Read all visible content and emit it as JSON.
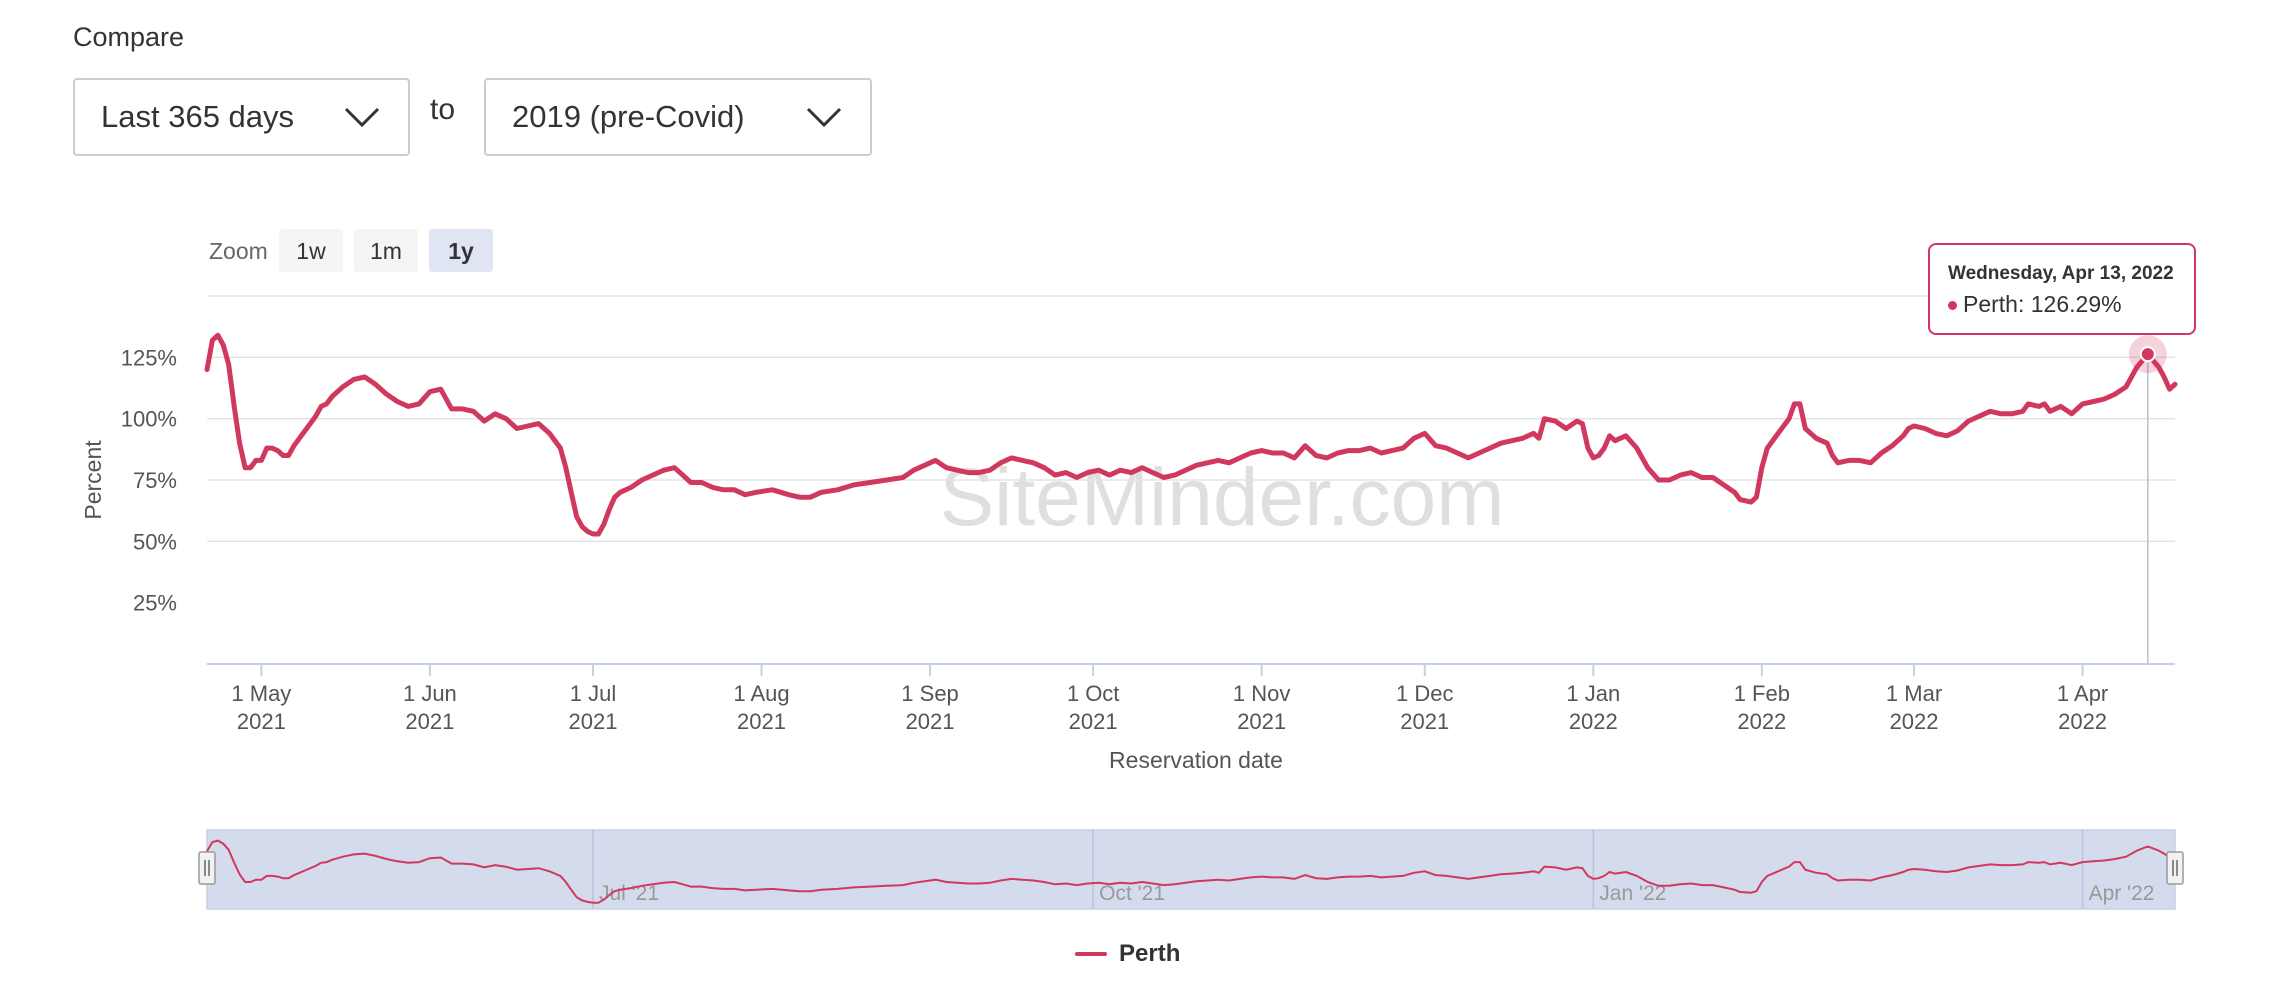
{
  "compare": {
    "label": "Compare",
    "period": "Last 365 days",
    "to": "to",
    "baseline": "2019 (pre-Covid)"
  },
  "zoom": {
    "label": "Zoom",
    "buttons": [
      "1w",
      "1m",
      "1y"
    ],
    "active": "1y"
  },
  "tooltip": {
    "date": "Wednesday, Apr 13, 2022",
    "series": "Perth",
    "value": "126.29%"
  },
  "watermark": "SiteMinder.com",
  "colors": {
    "series": "#d1385e",
    "navigator_fill": "#d4dbed",
    "zoom_active": "#dfe5f3",
    "zoom_inactive": "#f5f5f5"
  },
  "chart_data": {
    "type": "line",
    "title": "",
    "xlabel": "Reservation date",
    "ylabel": "Percent",
    "ylim": [
      0,
      150
    ],
    "y_ticks": [
      "25%",
      "50%",
      "75%",
      "100%",
      "125%"
    ],
    "grid": true,
    "legend_position": "bottom-center",
    "x_ticks": [
      {
        "line1": "1 May",
        "line2": "2021",
        "date": "2021-05-01"
      },
      {
        "line1": "1 Jun",
        "line2": "2021",
        "date": "2021-06-01"
      },
      {
        "line1": "1 Jul",
        "line2": "2021",
        "date": "2021-07-01"
      },
      {
        "line1": "1 Aug",
        "line2": "2021",
        "date": "2021-08-01"
      },
      {
        "line1": "1 Sep",
        "line2": "2021",
        "date": "2021-09-01"
      },
      {
        "line1": "1 Oct",
        "line2": "2021",
        "date": "2021-10-01"
      },
      {
        "line1": "1 Nov",
        "line2": "2021",
        "date": "2021-11-01"
      },
      {
        "line1": "1 Dec",
        "line2": "2021",
        "date": "2021-12-01"
      },
      {
        "line1": "1 Jan",
        "line2": "2022",
        "date": "2022-01-01"
      },
      {
        "line1": "1 Feb",
        "line2": "2022",
        "date": "2022-02-01"
      },
      {
        "line1": "1 Mar",
        "line2": "2022",
        "date": "2022-03-01"
      },
      {
        "line1": "1 Apr",
        "line2": "2022",
        "date": "2022-04-01"
      }
    ],
    "navigator_ticks": [
      {
        "label": "Jul '21",
        "date": "2021-07-01"
      },
      {
        "label": "Oct '21",
        "date": "2021-10-01"
      },
      {
        "label": "Jan '22",
        "date": "2022-01-01"
      },
      {
        "label": "Apr '22",
        "date": "2022-04-01"
      }
    ],
    "series": [
      {
        "name": "Perth",
        "color": "#d1385e",
        "points": [
          [
            "2021-04-21",
            120
          ],
          [
            "2021-04-22",
            132
          ],
          [
            "2021-04-23",
            134
          ],
          [
            "2021-04-24",
            130
          ],
          [
            "2021-04-25",
            122
          ],
          [
            "2021-04-26",
            105
          ],
          [
            "2021-04-27",
            90
          ],
          [
            "2021-04-28",
            80
          ],
          [
            "2021-04-29",
            80
          ],
          [
            "2021-04-30",
            83
          ],
          [
            "2021-05-01",
            83
          ],
          [
            "2021-05-02",
            88
          ],
          [
            "2021-05-03",
            88
          ],
          [
            "2021-05-04",
            87
          ],
          [
            "2021-05-05",
            85
          ],
          [
            "2021-05-06",
            85
          ],
          [
            "2021-05-07",
            89
          ],
          [
            "2021-05-08",
            92
          ],
          [
            "2021-05-09",
            95
          ],
          [
            "2021-05-10",
            98
          ],
          [
            "2021-05-11",
            101
          ],
          [
            "2021-05-12",
            105
          ],
          [
            "2021-05-13",
            106
          ],
          [
            "2021-05-14",
            109
          ],
          [
            "2021-05-16",
            113
          ],
          [
            "2021-05-18",
            116
          ],
          [
            "2021-05-20",
            117
          ],
          [
            "2021-05-22",
            114
          ],
          [
            "2021-05-24",
            110
          ],
          [
            "2021-05-26",
            107
          ],
          [
            "2021-05-28",
            105
          ],
          [
            "2021-05-30",
            106
          ],
          [
            "2021-06-01",
            111
          ],
          [
            "2021-06-03",
            112
          ],
          [
            "2021-06-05",
            104
          ],
          [
            "2021-06-07",
            104
          ],
          [
            "2021-06-09",
            103
          ],
          [
            "2021-06-11",
            99
          ],
          [
            "2021-06-13",
            102
          ],
          [
            "2021-06-15",
            100
          ],
          [
            "2021-06-17",
            96
          ],
          [
            "2021-06-19",
            97
          ],
          [
            "2021-06-21",
            98
          ],
          [
            "2021-06-23",
            94
          ],
          [
            "2021-06-25",
            88
          ],
          [
            "2021-06-26",
            80
          ],
          [
            "2021-06-27",
            70
          ],
          [
            "2021-06-28",
            60
          ],
          [
            "2021-06-29",
            56
          ],
          [
            "2021-06-30",
            54
          ],
          [
            "2021-07-01",
            53
          ],
          [
            "2021-07-02",
            53
          ],
          [
            "2021-07-03",
            57
          ],
          [
            "2021-07-04",
            63
          ],
          [
            "2021-07-05",
            68
          ],
          [
            "2021-07-06",
            70
          ],
          [
            "2021-07-08",
            72
          ],
          [
            "2021-07-10",
            75
          ],
          [
            "2021-07-12",
            77
          ],
          [
            "2021-07-14",
            79
          ],
          [
            "2021-07-16",
            80
          ],
          [
            "2021-07-18",
            76
          ],
          [
            "2021-07-19",
            74
          ],
          [
            "2021-07-21",
            74
          ],
          [
            "2021-07-23",
            72
          ],
          [
            "2021-07-25",
            71
          ],
          [
            "2021-07-27",
            71
          ],
          [
            "2021-07-29",
            69
          ],
          [
            "2021-07-31",
            70
          ],
          [
            "2021-08-03",
            71
          ],
          [
            "2021-08-06",
            69
          ],
          [
            "2021-08-08",
            68
          ],
          [
            "2021-08-10",
            68
          ],
          [
            "2021-08-12",
            70
          ],
          [
            "2021-08-15",
            71
          ],
          [
            "2021-08-18",
            73
          ],
          [
            "2021-08-21",
            74
          ],
          [
            "2021-08-24",
            75
          ],
          [
            "2021-08-27",
            76
          ],
          [
            "2021-08-29",
            79
          ],
          [
            "2021-08-31",
            81
          ],
          [
            "2021-09-01",
            82
          ],
          [
            "2021-09-02",
            83
          ],
          [
            "2021-09-04",
            80
          ],
          [
            "2021-09-06",
            79
          ],
          [
            "2021-09-08",
            78
          ],
          [
            "2021-09-10",
            78
          ],
          [
            "2021-09-12",
            79
          ],
          [
            "2021-09-14",
            82
          ],
          [
            "2021-09-16",
            84
          ],
          [
            "2021-09-18",
            83
          ],
          [
            "2021-09-20",
            82
          ],
          [
            "2021-09-22",
            80
          ],
          [
            "2021-09-24",
            77
          ],
          [
            "2021-09-26",
            78
          ],
          [
            "2021-09-28",
            76
          ],
          [
            "2021-09-30",
            78
          ],
          [
            "2021-10-02",
            79
          ],
          [
            "2021-10-04",
            77
          ],
          [
            "2021-10-06",
            79
          ],
          [
            "2021-10-08",
            78
          ],
          [
            "2021-10-10",
            80
          ],
          [
            "2021-10-12",
            78
          ],
          [
            "2021-10-14",
            76
          ],
          [
            "2021-10-16",
            77
          ],
          [
            "2021-10-18",
            79
          ],
          [
            "2021-10-20",
            81
          ],
          [
            "2021-10-22",
            82
          ],
          [
            "2021-10-24",
            83
          ],
          [
            "2021-10-26",
            82
          ],
          [
            "2021-10-28",
            84
          ],
          [
            "2021-10-30",
            86
          ],
          [
            "2021-11-01",
            87
          ],
          [
            "2021-11-03",
            86
          ],
          [
            "2021-11-05",
            86
          ],
          [
            "2021-11-07",
            84
          ],
          [
            "2021-11-09",
            89
          ],
          [
            "2021-11-11",
            85
          ],
          [
            "2021-11-13",
            84
          ],
          [
            "2021-11-15",
            86
          ],
          [
            "2021-11-17",
            87
          ],
          [
            "2021-11-19",
            87
          ],
          [
            "2021-11-21",
            88
          ],
          [
            "2021-11-23",
            86
          ],
          [
            "2021-11-25",
            87
          ],
          [
            "2021-11-27",
            88
          ],
          [
            "2021-11-29",
            92
          ],
          [
            "2021-12-01",
            94
          ],
          [
            "2021-12-03",
            89
          ],
          [
            "2021-12-05",
            88
          ],
          [
            "2021-12-07",
            86
          ],
          [
            "2021-12-09",
            84
          ],
          [
            "2021-12-11",
            86
          ],
          [
            "2021-12-13",
            88
          ],
          [
            "2021-12-15",
            90
          ],
          [
            "2021-12-17",
            91
          ],
          [
            "2021-12-19",
            92
          ],
          [
            "2021-12-21",
            94
          ],
          [
            "2021-12-22",
            92
          ],
          [
            "2021-12-23",
            100
          ],
          [
            "2021-12-25",
            99
          ],
          [
            "2021-12-27",
            96
          ],
          [
            "2021-12-29",
            99
          ],
          [
            "2021-12-30",
            98
          ],
          [
            "2021-12-31",
            88
          ],
          [
            "2022-01-01",
            84
          ],
          [
            "2022-01-02",
            85
          ],
          [
            "2022-01-03",
            88
          ],
          [
            "2022-01-04",
            93
          ],
          [
            "2022-01-05",
            91
          ],
          [
            "2022-01-07",
            93
          ],
          [
            "2022-01-09",
            88
          ],
          [
            "2022-01-11",
            80
          ],
          [
            "2022-01-13",
            75
          ],
          [
            "2022-01-15",
            75
          ],
          [
            "2022-01-17",
            77
          ],
          [
            "2022-01-19",
            78
          ],
          [
            "2022-01-21",
            76
          ],
          [
            "2022-01-23",
            76
          ],
          [
            "2022-01-25",
            73
          ],
          [
            "2022-01-27",
            70
          ],
          [
            "2022-01-28",
            67
          ],
          [
            "2022-01-30",
            66
          ],
          [
            "2022-01-31",
            68
          ],
          [
            "2022-02-01",
            80
          ],
          [
            "2022-02-02",
            88
          ],
          [
            "2022-02-04",
            94
          ],
          [
            "2022-02-06",
            100
          ],
          [
            "2022-02-07",
            106
          ],
          [
            "2022-02-08",
            106
          ],
          [
            "2022-02-09",
            96
          ],
          [
            "2022-02-11",
            92
          ],
          [
            "2022-02-13",
            90
          ],
          [
            "2022-02-14",
            85
          ],
          [
            "2022-02-15",
            82
          ],
          [
            "2022-02-17",
            83
          ],
          [
            "2022-02-19",
            83
          ],
          [
            "2022-02-21",
            82
          ],
          [
            "2022-02-23",
            86
          ],
          [
            "2022-02-25",
            89
          ],
          [
            "2022-02-27",
            93
          ],
          [
            "2022-02-28",
            96
          ],
          [
            "2022-03-01",
            97
          ],
          [
            "2022-03-03",
            96
          ],
          [
            "2022-03-05",
            94
          ],
          [
            "2022-03-07",
            93
          ],
          [
            "2022-03-09",
            95
          ],
          [
            "2022-03-11",
            99
          ],
          [
            "2022-03-13",
            101
          ],
          [
            "2022-03-15",
            103
          ],
          [
            "2022-03-17",
            102
          ],
          [
            "2022-03-19",
            102
          ],
          [
            "2022-03-21",
            103
          ],
          [
            "2022-03-22",
            106
          ],
          [
            "2022-03-24",
            105
          ],
          [
            "2022-03-25",
            106
          ],
          [
            "2022-03-26",
            103
          ],
          [
            "2022-03-28",
            105
          ],
          [
            "2022-03-30",
            102
          ],
          [
            "2022-04-01",
            106
          ],
          [
            "2022-04-03",
            107
          ],
          [
            "2022-04-05",
            108
          ],
          [
            "2022-04-07",
            110
          ],
          [
            "2022-04-09",
            113
          ],
          [
            "2022-04-11",
            121
          ],
          [
            "2022-04-13",
            126.29
          ],
          [
            "2022-04-15",
            121
          ],
          [
            "2022-04-16",
            117
          ],
          [
            "2022-04-17",
            112
          ],
          [
            "2022-04-18",
            114
          ]
        ]
      }
    ],
    "tooltip_point": {
      "date": "2022-04-13",
      "value": 126.29
    }
  }
}
